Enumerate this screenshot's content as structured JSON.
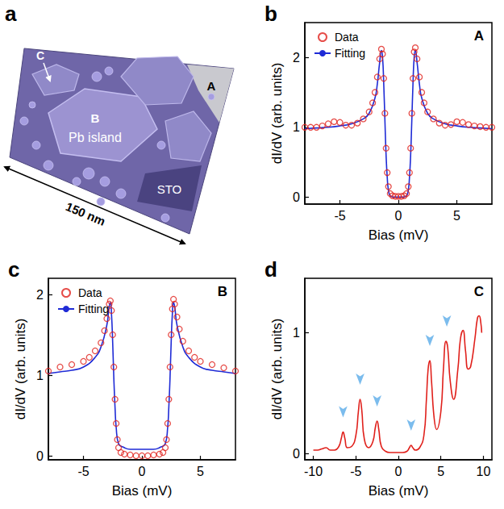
{
  "image_panel": {
    "label": "a",
    "texts": [
      "A",
      "B",
      "Pb island",
      "C",
      "STO",
      "150 nm"
    ]
  },
  "chart_data": [
    {
      "type": "line",
      "panel": "b",
      "title": "A",
      "x_label": "Bias (mV)",
      "y_label": "dI/dV (arb. units)",
      "xlim": [
        -8,
        8
      ],
      "xticks": [
        -5,
        0,
        5
      ],
      "ylim": [
        -0.1,
        2.5
      ],
      "yticks": [
        0,
        1,
        2
      ],
      "grid": false,
      "legend": "upper left",
      "series": [
        {
          "name": "Data",
          "type": "scatter",
          "marker": "circle",
          "color": "#e0201b",
          "x": [
            -8,
            -7.5,
            -7,
            -6.5,
            -6,
            -5.5,
            -5,
            -4.5,
            -4,
            -3.5,
            -3,
            -2.5,
            -2.2,
            -2,
            -1.8,
            -1.6,
            -1.45,
            -1.35,
            -1.25,
            -1.15,
            -1.05,
            -0.95,
            -0.85,
            -0.7,
            -0.5,
            -0.25,
            0,
            0.25,
            0.5,
            0.7,
            0.85,
            0.95,
            1.05,
            1.15,
            1.25,
            1.35,
            1.45,
            1.6,
            1.8,
            2,
            2.2,
            2.5,
            3,
            3.5,
            4,
            4.5,
            5,
            5.5,
            6,
            6.5,
            7,
            7.5,
            8
          ],
          "values": [
            1.0,
            1.0,
            1.0,
            1.02,
            1.05,
            1.08,
            1.07,
            1.03,
            1.03,
            1.06,
            1.12,
            1.22,
            1.35,
            1.5,
            1.72,
            1.98,
            2.12,
            2.05,
            1.7,
            1.2,
            0.7,
            0.35,
            0.15,
            0.05,
            0.02,
            0.01,
            0.01,
            0.01,
            0.02,
            0.05,
            0.15,
            0.35,
            0.7,
            1.2,
            1.7,
            2.08,
            2.14,
            1.98,
            1.72,
            1.5,
            1.35,
            1.22,
            1.12,
            1.06,
            1.03,
            1.04,
            1.08,
            1.07,
            1.04,
            1.02,
            1.01,
            1.0,
            1.0
          ]
        },
        {
          "name": "Fitting",
          "type": "line",
          "line_style": "solid",
          "color": "#1f2bd6",
          "x": [
            -8,
            -7,
            -6,
            -5,
            -4,
            -3,
            -2.5,
            -2,
            -1.8,
            -1.6,
            -1.45,
            -1.35,
            -1.25,
            -1.15,
            -1.05,
            -0.95,
            -0.85,
            -0.7,
            -0.4,
            0,
            0.4,
            0.7,
            0.85,
            0.95,
            1.05,
            1.15,
            1.25,
            1.35,
            1.45,
            1.6,
            1.8,
            2,
            2.5,
            3,
            4,
            5,
            6,
            7,
            8
          ],
          "values": [
            0.98,
            0.99,
            1.0,
            1.02,
            1.05,
            1.12,
            1.2,
            1.42,
            1.62,
            1.93,
            2.1,
            2.0,
            1.62,
            1.1,
            0.6,
            0.28,
            0.1,
            0.02,
            0.0,
            0.0,
            0.0,
            0.02,
            0.1,
            0.28,
            0.6,
            1.1,
            1.62,
            2.0,
            2.1,
            1.93,
            1.62,
            1.42,
            1.2,
            1.12,
            1.05,
            1.02,
            1.0,
            0.99,
            0.98
          ]
        }
      ]
    },
    {
      "type": "line",
      "panel": "c",
      "title": "B",
      "x_label": "Bias (mV)",
      "y_label": "dI/dV (arb. units)",
      "xlim": [
        -8,
        8
      ],
      "xticks": [
        -5,
        0,
        5
      ],
      "ylim": [
        -0.05,
        2.2
      ],
      "yticks": [
        0,
        1,
        2
      ],
      "grid": false,
      "legend": "upper left",
      "series": [
        {
          "name": "Data",
          "type": "scatter",
          "marker": "circle",
          "color": "#e0201b",
          "x": [
            -8,
            -7,
            -6,
            -5,
            -4.5,
            -4,
            -3.5,
            -3.2,
            -3,
            -2.8,
            -2.7,
            -2.6,
            -2.5,
            -2.4,
            -2.3,
            -2.2,
            -2.1,
            -2,
            -1.8,
            -1.5,
            -1,
            -0.5,
            0,
            0.5,
            1,
            1.5,
            1.8,
            2,
            2.1,
            2.2,
            2.3,
            2.4,
            2.5,
            2.6,
            2.7,
            2.8,
            3,
            3.2,
            3.5,
            4,
            4.5,
            5,
            6,
            7,
            8
          ],
          "values": [
            1.05,
            1.1,
            1.13,
            1.17,
            1.22,
            1.3,
            1.4,
            1.55,
            1.7,
            1.88,
            1.92,
            1.8,
            1.5,
            1.1,
            0.7,
            0.4,
            0.2,
            0.1,
            0.04,
            0.02,
            0.01,
            0.0,
            0.0,
            0.0,
            0.01,
            0.02,
            0.04,
            0.1,
            0.2,
            0.4,
            0.7,
            1.1,
            1.5,
            1.82,
            1.94,
            1.88,
            1.72,
            1.57,
            1.42,
            1.3,
            1.22,
            1.17,
            1.13,
            1.09,
            1.05
          ]
        },
        {
          "name": "Fitting",
          "type": "line",
          "line_style": "solid",
          "color": "#1f2bd6",
          "x": [
            -8,
            -7,
            -6,
            -5,
            -4,
            -3.5,
            -3,
            -2.8,
            -2.7,
            -2.6,
            -2.5,
            -2.4,
            -2.3,
            -2.2,
            -2,
            -1.5,
            -1,
            0,
            1,
            1.5,
            2,
            2.2,
            2.3,
            2.4,
            2.5,
            2.6,
            2.7,
            2.8,
            3,
            3.5,
            4,
            5,
            6,
            7,
            8
          ],
          "values": [
            1.02,
            1.04,
            1.06,
            1.1,
            1.22,
            1.35,
            1.62,
            1.85,
            1.9,
            1.75,
            1.4,
            0.95,
            0.6,
            0.35,
            0.15,
            0.1,
            0.08,
            0.08,
            0.08,
            0.1,
            0.15,
            0.35,
            0.6,
            0.95,
            1.4,
            1.75,
            1.9,
            1.85,
            1.62,
            1.35,
            1.22,
            1.1,
            1.06,
            1.04,
            1.02
          ]
        }
      ]
    },
    {
      "type": "line",
      "panel": "d",
      "title": "C",
      "x_label": "Bias (mV)",
      "y_label": "dI/dV (arb. units)",
      "xlim": [
        -11,
        11
      ],
      "xticks": [
        -10,
        -5,
        0,
        5,
        10
      ],
      "ylim": [
        -0.05,
        1.45
      ],
      "yticks": [
        0,
        1
      ],
      "grid": false,
      "series": [
        {
          "type": "line",
          "line_style": "solid",
          "color": "#e0201b",
          "x": [
            -10,
            -9.5,
            -9,
            -8.5,
            -8,
            -7.5,
            -7,
            -6.7,
            -6.5,
            -6.3,
            -6,
            -5.5,
            -5,
            -4.7,
            -4.5,
            -4.3,
            -4,
            -3.5,
            -3,
            -2.7,
            -2.5,
            -2.3,
            -2,
            -1.5,
            -1,
            -0.5,
            0,
            0.5,
            1,
            1.3,
            1.5,
            1.7,
            2,
            2.5,
            3,
            3.3,
            3.5,
            3.7,
            3.9,
            4.2,
            4.5,
            5,
            5.3,
            5.6,
            5.8,
            6.1,
            6.5,
            7,
            7.3,
            7.6,
            7.9,
            8.2,
            8.5,
            9,
            9.3,
            9.5,
            9.7,
            9.8
          ],
          "values": [
            0.03,
            0.03,
            0.04,
            0.05,
            0.03,
            0.03,
            0.06,
            0.13,
            0.18,
            0.13,
            0.05,
            0.06,
            0.15,
            0.35,
            0.45,
            0.36,
            0.12,
            0.05,
            0.1,
            0.22,
            0.27,
            0.2,
            0.06,
            0.02,
            0.01,
            0.01,
            0.01,
            0.01,
            0.02,
            0.05,
            0.07,
            0.05,
            0.03,
            0.05,
            0.15,
            0.45,
            0.7,
            0.77,
            0.6,
            0.3,
            0.2,
            0.35,
            0.7,
            0.93,
            0.88,
            0.6,
            0.45,
            0.7,
            0.95,
            1.02,
            0.85,
            0.7,
            0.72,
            0.95,
            1.12,
            1.14,
            1.08,
            1.0
          ]
        }
      ],
      "arrows": {
        "color": "#5aabe8",
        "x": [
          -6.5,
          -4.5,
          -2.5,
          1.5,
          3.7,
          5.7
        ],
        "y": [
          0.3,
          0.57,
          0.39,
          0.19,
          0.89,
          1.05
        ]
      }
    }
  ]
}
